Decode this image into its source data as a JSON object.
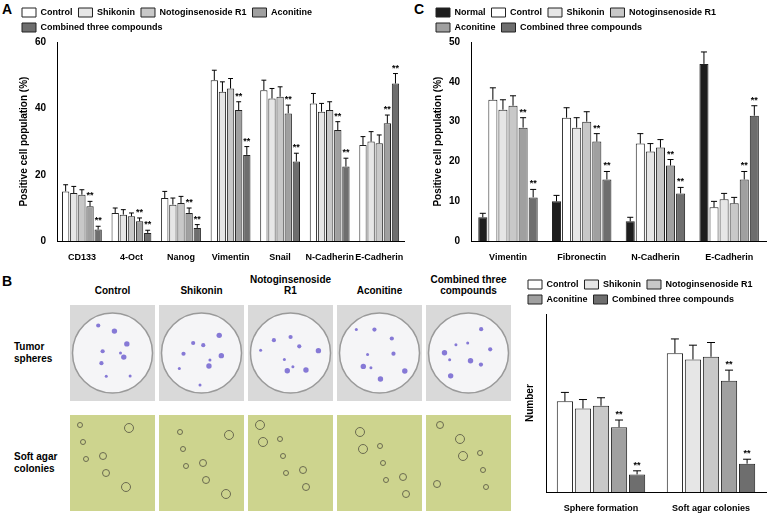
{
  "chart_data": [
    {
      "type": "bar",
      "panel_label": "A",
      "y_label": "Positive cell population (%)",
      "categories": [
        "CD133",
        "4-Oct",
        "Nanog",
        "Vimentin",
        "Snail",
        "N-Cadherin",
        "E-Cadherin"
      ],
      "series": [
        {
          "name": "Control",
          "color": "#ffffff",
          "values": [
            15,
            8.5,
            13,
            48.5,
            45.5,
            41.5,
            29
          ],
          "errors": [
            2,
            1.5,
            2,
            3,
            3,
            3,
            2.5
          ]
        },
        {
          "name": "Shikonin",
          "color": "#e6e6e6",
          "values": [
            14.5,
            8,
            11,
            45,
            43,
            39,
            30
          ],
          "errors": [
            2,
            1.5,
            2,
            3,
            3,
            2.5,
            3
          ]
        },
        {
          "name": "Notoginsenoside R1",
          "color": "#c8c8c8",
          "values": [
            14,
            7.5,
            11.5,
            46,
            43.5,
            39.5,
            29.5
          ],
          "errors": [
            1.5,
            1,
            2,
            3,
            3,
            2.5,
            2.5
          ]
        },
        {
          "name": "Aconitine",
          "color": "#a0a0a0",
          "values": [
            10.5,
            6,
            8.5,
            39.5,
            38.5,
            33.5,
            35.5
          ],
          "errors": [
            1.5,
            1,
            1.5,
            2.5,
            2.5,
            2.5,
            2.5
          ],
          "significance": [
            "**",
            "**",
            "**",
            "**",
            "**",
            "**",
            "**"
          ]
        },
        {
          "name": "Combined three compounds",
          "color": "#6e6e6e",
          "values": [
            3.5,
            2.5,
            4,
            26,
            24,
            22.5,
            47.5
          ],
          "errors": [
            1,
            0.8,
            1,
            2.5,
            2.5,
            2.5,
            3
          ],
          "significance": [
            "**",
            "**",
            "**",
            "**",
            "**",
            "**",
            "**"
          ]
        }
      ],
      "ylim": [
        0,
        60
      ],
      "yticks": [
        0,
        20,
        40,
        60
      ],
      "grid": false,
      "legend": "top"
    },
    {
      "type": "bar",
      "panel_label": "C",
      "y_label": "Positive cell population (%)",
      "categories": [
        "Vimentin",
        "Fibronectin",
        "N-Cadherin",
        "E-Cadherin"
      ],
      "series": [
        {
          "name": "Normal",
          "color": "#1e1e1e",
          "values": [
            6,
            10,
            5,
            44.5
          ],
          "errors": [
            1,
            1.5,
            1,
            3
          ]
        },
        {
          "name": "Control",
          "color": "#ffffff",
          "values": [
            35.5,
            31,
            24.5,
            8.5
          ],
          "errors": [
            3,
            2.5,
            2.5,
            1.5
          ]
        },
        {
          "name": "Shikonin",
          "color": "#e6e6e6",
          "values": [
            33,
            28.5,
            22.5,
            10.5
          ],
          "errors": [
            2.5,
            2.5,
            2,
            1.5
          ]
        },
        {
          "name": "Notoginsenoside R1",
          "color": "#c8c8c8",
          "values": [
            34,
            30,
            23.5,
            9.5
          ],
          "errors": [
            2.5,
            2.5,
            2,
            1.5
          ]
        },
        {
          "name": "Aconitine",
          "color": "#a0a0a0",
          "values": [
            28.5,
            25,
            19,
            15.5
          ],
          "errors": [
            2.5,
            2,
            1.5,
            2
          ],
          "significance": [
            "**",
            "**",
            "**",
            "**"
          ]
        },
        {
          "name": "Combined three compounds",
          "color": "#6e6e6e",
          "values": [
            11,
            15.5,
            12,
            31.5
          ],
          "errors": [
            2,
            2,
            1.5,
            2.5
          ],
          "significance": [
            "**",
            "**",
            "**",
            "**"
          ]
        }
      ],
      "ylim": [
        0,
        50
      ],
      "yticks": [
        0,
        10,
        20,
        30,
        40,
        50
      ],
      "grid": false,
      "legend": "top"
    },
    {
      "type": "bar",
      "y_label": "Number",
      "categories": [
        "Sphere formation",
        "Soft agar colonies"
      ],
      "series": [
        {
          "name": "Control",
          "color": "#ffffff",
          "values": [
            51,
            78
          ],
          "errors": [
            5,
            8
          ]
        },
        {
          "name": "Shikonin",
          "color": "#e6e6e6",
          "values": [
            47,
            74.5
          ],
          "errors": [
            5,
            8
          ]
        },
        {
          "name": "Notoginsenoside R1",
          "color": "#c8c8c8",
          "values": [
            48.5,
            76
          ],
          "errors": [
            4.5,
            8
          ]
        },
        {
          "name": "Aconitine",
          "color": "#a0a0a0",
          "values": [
            36.5,
            62.5
          ],
          "errors": [
            4,
            6
          ],
          "significance": [
            "**",
            "**"
          ]
        },
        {
          "name": "Combined three compounds",
          "color": "#6e6e6e",
          "values": [
            10,
            16
          ],
          "errors": [
            2,
            2.5
          ],
          "significance": [
            "**",
            "**"
          ]
        }
      ],
      "ylim": [
        0,
        100
      ],
      "grid": false,
      "legend": "top",
      "tick_labels": "x"
    }
  ],
  "image_panel": {
    "panel_label": "B",
    "column_titles": [
      "Control",
      "Shikonin",
      "Notoginsenoside R1",
      "Aconitine",
      "Combined three compounds"
    ],
    "row_titles": [
      "Tumor spheres",
      "Soft agar colonies"
    ]
  }
}
